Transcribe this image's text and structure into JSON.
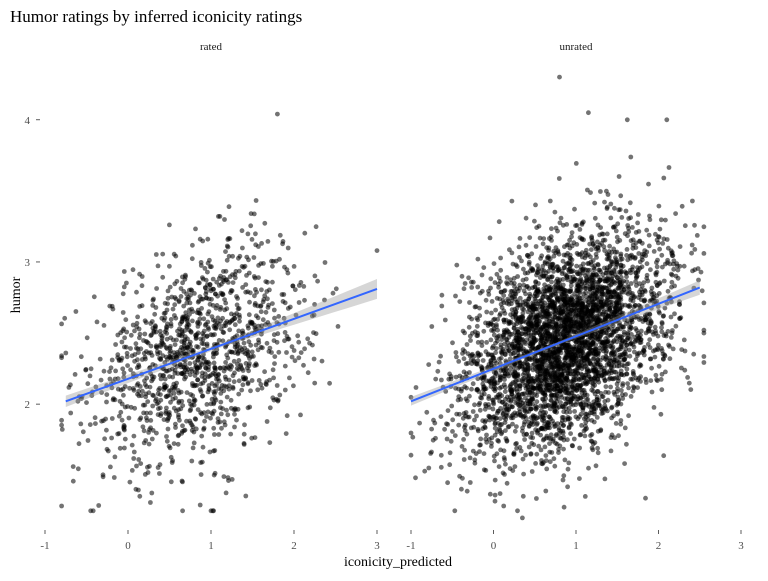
{
  "chart_data": {
    "type": "scatter",
    "title": "Humor ratings by inferred iconicity ratings",
    "xlabel": "iconicity_predicted",
    "ylabel": "humor",
    "xlim": [
      -1,
      3
    ],
    "ylim": [
      1.15,
      4.35
    ],
    "x_ticks": [
      "-1",
      "0",
      "1",
      "2",
      "3"
    ],
    "y_ticks": [
      "2",
      "3",
      "4"
    ],
    "grid": false,
    "legend": "none",
    "colors": {
      "points": "#000000",
      "fit": "#3366ff",
      "band": "#999999"
    },
    "panels": [
      {
        "name": "rated",
        "n_points": 1250,
        "x_mean": 0.85,
        "x_sd": 0.65,
        "x_range": [
          -0.8,
          3.0
        ],
        "y_mean": 2.35,
        "y_sd": 0.42,
        "y_range": [
          1.2,
          4.05
        ],
        "fit": {
          "x": [
            -0.75,
            3.0
          ],
          "y": [
            2.02,
            2.81
          ]
        },
        "band_halfwidth": {
          "start": 0.04,
          "mid": 0.015,
          "end": 0.07
        },
        "notable_points": [
          {
            "x": 1.8,
            "y": 4.04
          },
          {
            "x": 1.0,
            "y": 1.25
          },
          {
            "x": 3.0,
            "y": 3.08
          },
          {
            "x": -0.75,
            "y": 2.36
          }
        ]
      },
      {
        "name": "unrated",
        "n_points": 3800,
        "x_mean": 0.85,
        "x_sd": 0.6,
        "x_range": [
          -1.0,
          2.55
        ],
        "y_mean": 2.35,
        "y_sd": 0.42,
        "y_range": [
          1.2,
          4.3
        ],
        "fit": {
          "x": [
            -1.0,
            2.5
          ],
          "y": [
            2.02,
            2.82
          ]
        },
        "band_halfwidth": {
          "start": 0.03,
          "mid": 0.01,
          "end": 0.05
        },
        "notable_points": [
          {
            "x": 0.8,
            "y": 4.3
          },
          {
            "x": 1.15,
            "y": 4.05
          },
          {
            "x": 2.1,
            "y": 4.0
          },
          {
            "x": 0.35,
            "y": 1.2
          }
        ]
      }
    ]
  }
}
